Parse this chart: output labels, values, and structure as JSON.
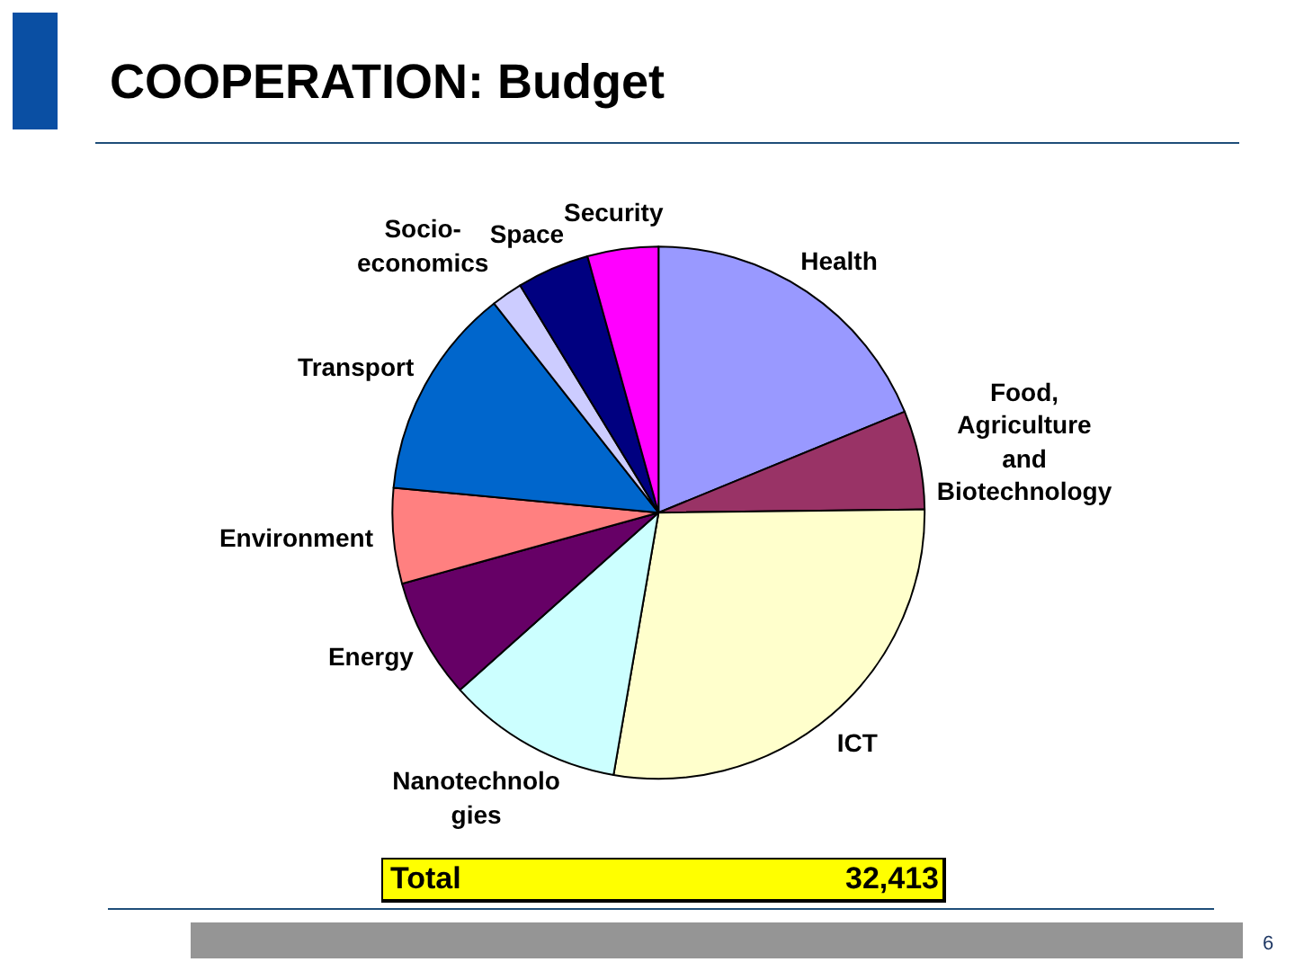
{
  "chart_data": {
    "type": "pie",
    "title": "COOPERATION: Budget",
    "categories": [
      "Health",
      "Food, Agriculture and Biotechnology",
      "ICT",
      "Nanotechnologies",
      "Energy",
      "Environment",
      "Transport",
      "Socio-economics",
      "Space",
      "Security"
    ],
    "values": [
      18.8,
      6.0,
      27.9,
      10.7,
      7.3,
      5.8,
      12.9,
      1.9,
      4.4,
      4.3
    ],
    "colors": [
      "#9999ff",
      "#993366",
      "#ffffcc",
      "#ccffff",
      "#660066",
      "#ff8080",
      "#0066cc",
      "#ccccff",
      "#000080",
      "#ff00ff"
    ],
    "annotations": [
      "Total",
      "32,413",
      "6"
    ],
    "legend": false
  }
}
